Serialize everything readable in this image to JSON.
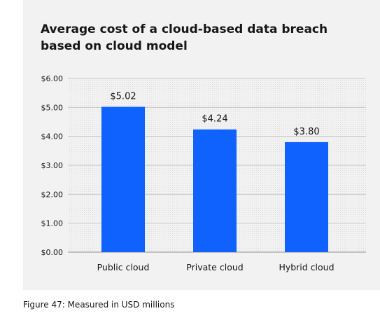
{
  "chart_data": {
    "type": "bar",
    "title": "Average cost of a cloud-based data breach based on cloud model",
    "categories": [
      "Public cloud",
      "Private cloud",
      "Hybrid cloud"
    ],
    "values": [
      5.02,
      4.24,
      3.8
    ],
    "data_labels": [
      "$5.02",
      "$4.24",
      "$3.80"
    ],
    "y_ticks": [
      "$0.00",
      "$1.00",
      "$2.00",
      "$3.00",
      "$4.00",
      "$5.00",
      "$6.00"
    ],
    "ylim": [
      0,
      6
    ],
    "xlabel": "",
    "ylabel": "",
    "grid": true,
    "bar_color": "#0f62fe"
  },
  "caption": "Figure 47: Measured in USD millions"
}
